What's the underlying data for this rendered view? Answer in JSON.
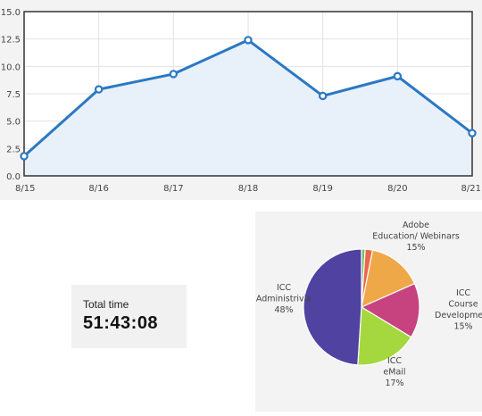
{
  "chart_data": [
    {
      "type": "area",
      "categories": [
        "8/15",
        "8/16",
        "8/17",
        "8/18",
        "8/19",
        "8/20",
        "8/21"
      ],
      "values": [
        1.8,
        7.9,
        9.3,
        12.4,
        7.3,
        9.1,
        3.9
      ],
      "y_ticks": [
        "0.0",
        "2.5",
        "5.0",
        "7.5",
        "10.0",
        "12.5",
        "15.0"
      ],
      "ylim": [
        0,
        15
      ],
      "grid": true,
      "colors": {
        "line": "#2b78c2",
        "fill": "#e8f0fa",
        "point_fill": "#ffffff"
      }
    },
    {
      "type": "pie",
      "slices": [
        {
          "label": [
            "",
            ""
          ],
          "percent": "",
          "value": 1,
          "color": "#6fbf6a"
        },
        {
          "label": [
            "",
            ""
          ],
          "percent": "",
          "value": 2,
          "color": "#e9674a"
        },
        {
          "label": [
            "Adobe",
            "Education/ Webinars"
          ],
          "percent": "15%",
          "value": 15,
          "color": "#efa847"
        },
        {
          "label": [
            "ICC",
            "Course",
            "Development"
          ],
          "percent": "15%",
          "value": 15,
          "color": "#c7437f"
        },
        {
          "label": [
            "ICC",
            "eMail"
          ],
          "percent": "17%",
          "value": 17,
          "color": "#a4d83e"
        },
        {
          "label": [
            "ICC",
            "Administrivia"
          ],
          "percent": "48%",
          "value": 48,
          "color": "#5042a0"
        }
      ]
    }
  ],
  "total_time": {
    "label": "Total time",
    "value": "51:43:08"
  }
}
